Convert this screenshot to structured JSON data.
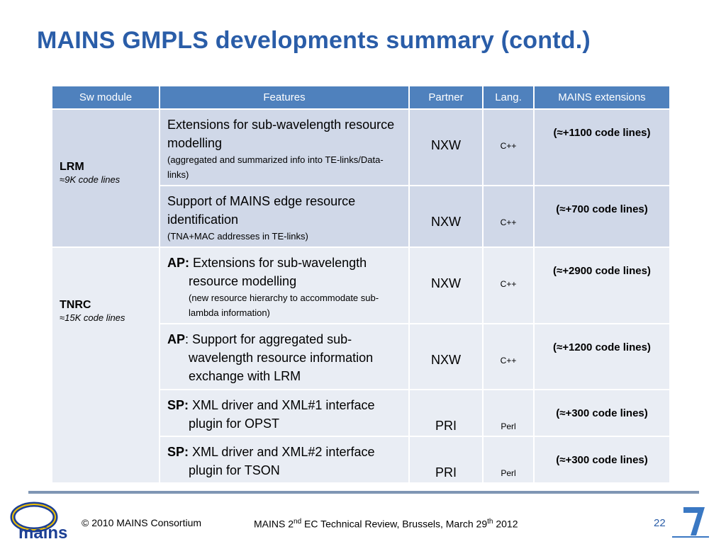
{
  "title": "MAINS GMPLS developments summary (contd.)",
  "table": {
    "header": [
      "Sw module",
      "Features",
      "Partner",
      "Lang.",
      "MAINS extensions"
    ],
    "groups": [
      {
        "module": "LRM",
        "note": "≈9K code lines",
        "rows": [
          {
            "features": {
              "text": "Extensions for sub-wavelength resource modelling",
              "detail": "(aggregated and summarized info into TE-links/Data-links)"
            },
            "partner": "NXW",
            "lang": "C++",
            "extensions": "(≈+1100 code lines)"
          },
          {
            "features": {
              "text": "Support of MAINS edge resource identification",
              "detail": "(TNA+MAC addresses in TE-links)"
            },
            "partner": "NXW",
            "lang": "C++",
            "extensions": "(≈+700 code lines)"
          }
        ]
      },
      {
        "module": "TNRC",
        "note": "≈15K code lines",
        "rows": [
          {
            "features": {
              "lead": "AP:",
              "text": " Extensions for sub-wavelength resource modelling",
              "detail": "(new resource hierarchy to accommodate sub-lambda information)"
            },
            "partner": "NXW",
            "lang": "C++",
            "extensions": "(≈+2900 code lines)"
          },
          {
            "features": {
              "lead": "AP",
              "text": ": Support for aggregated sub-wavelength resource information exchange with LRM"
            },
            "partner": "NXW",
            "lang": "C++",
            "extensions": "(≈+1200 code lines)"
          },
          {
            "features": {
              "lead": "SP:",
              "text": " XML driver and XML#1 interface plugin for OPST"
            },
            "partner": "PRI",
            "lang": "Perl",
            "extensions": "(≈+300 code lines)"
          },
          {
            "features": {
              "lead": "SP:",
              "text": " XML driver and XML#2 interface plugin for TSON"
            },
            "partner": "PRI",
            "lang": "Perl",
            "extensions": "(≈+300 code lines)"
          }
        ]
      }
    ]
  },
  "footer": {
    "logo": "mains",
    "copyright": "© 2010 MAINS Consortium",
    "review": [
      "MAINS 2",
      "nd",
      " EC Technical Review, Brussels, March 29",
      "th",
      " 2012"
    ],
    "page": "22"
  }
}
